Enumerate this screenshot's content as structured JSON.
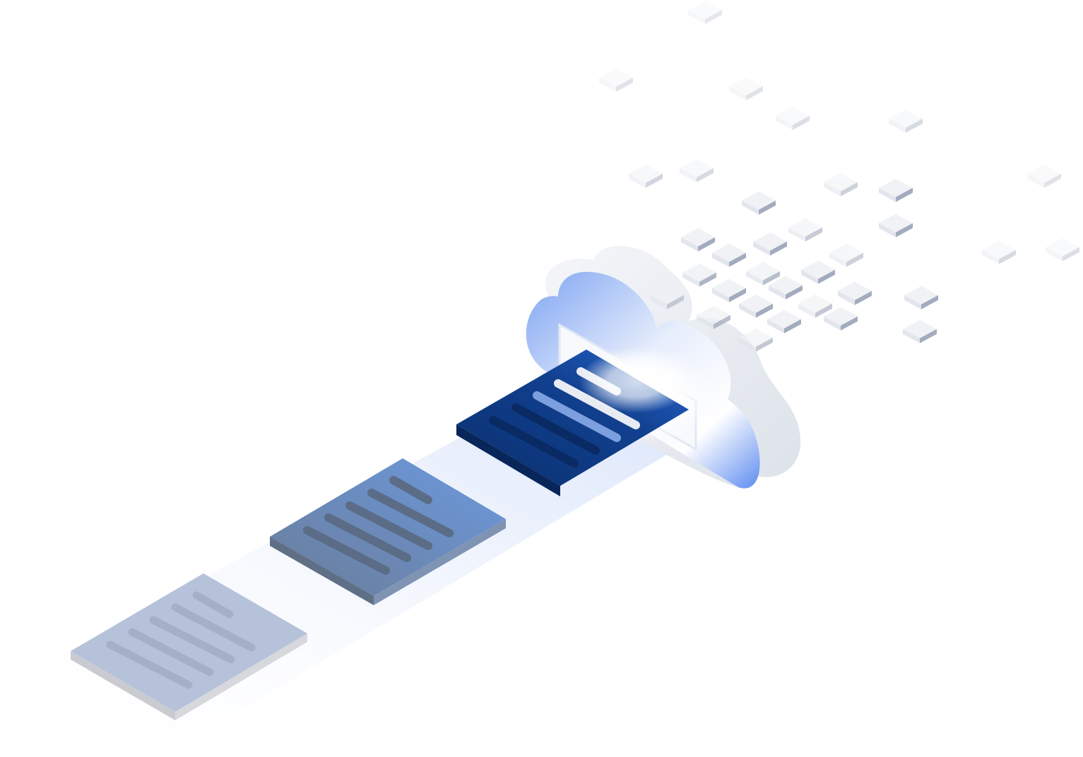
{
  "illustration": {
    "subject": "documents-uploading-to-cloud",
    "icons": [
      "document-icon",
      "document-icon",
      "document-icon",
      "cloud-icon",
      "data-block-icon"
    ]
  },
  "colors": {
    "background": "#ffffff",
    "doc_faded_top": "#b6c2da",
    "doc_faded_side": "#c9cbd0",
    "doc_mid_top_left": "#6a7c98",
    "doc_mid_top_right": "#6c9ae0",
    "doc_mid_side": "#5f6f85",
    "doc_dark_top_left": "#0a2f6e",
    "doc_dark_top_right": "#1a58c2",
    "doc_dark_side": "#082659",
    "cloud_accent": "#5f8ff0",
    "cloud_white": "#f2f4f7",
    "block_top": "#eff1f5",
    "block_side": "#9aa4b6"
  }
}
